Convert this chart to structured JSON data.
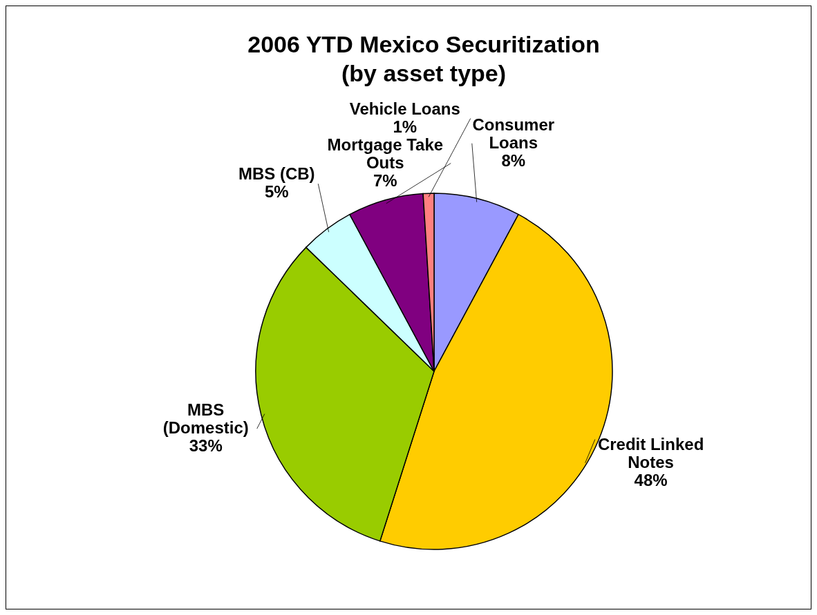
{
  "chart_data": {
    "type": "pie",
    "title": "2006 YTD Mexico Securitization",
    "subtitle": "(by asset type)",
    "categories": [
      "Consumer Loans",
      "Credit Linked Notes",
      "MBS (Domestic)",
      "MBS (CB)",
      "Mortgage Take Outs",
      "Vehicle Loans"
    ],
    "values": [
      8,
      48,
      33,
      5,
      7,
      1
    ],
    "value_labels": [
      "8%",
      "48%",
      "33%",
      "5%",
      "7%",
      "1%"
    ],
    "colors": [
      "#9999ff",
      "#ffcc00",
      "#99cc00",
      "#ccffff",
      "#800080",
      "#ff8080"
    ],
    "legend": false
  }
}
